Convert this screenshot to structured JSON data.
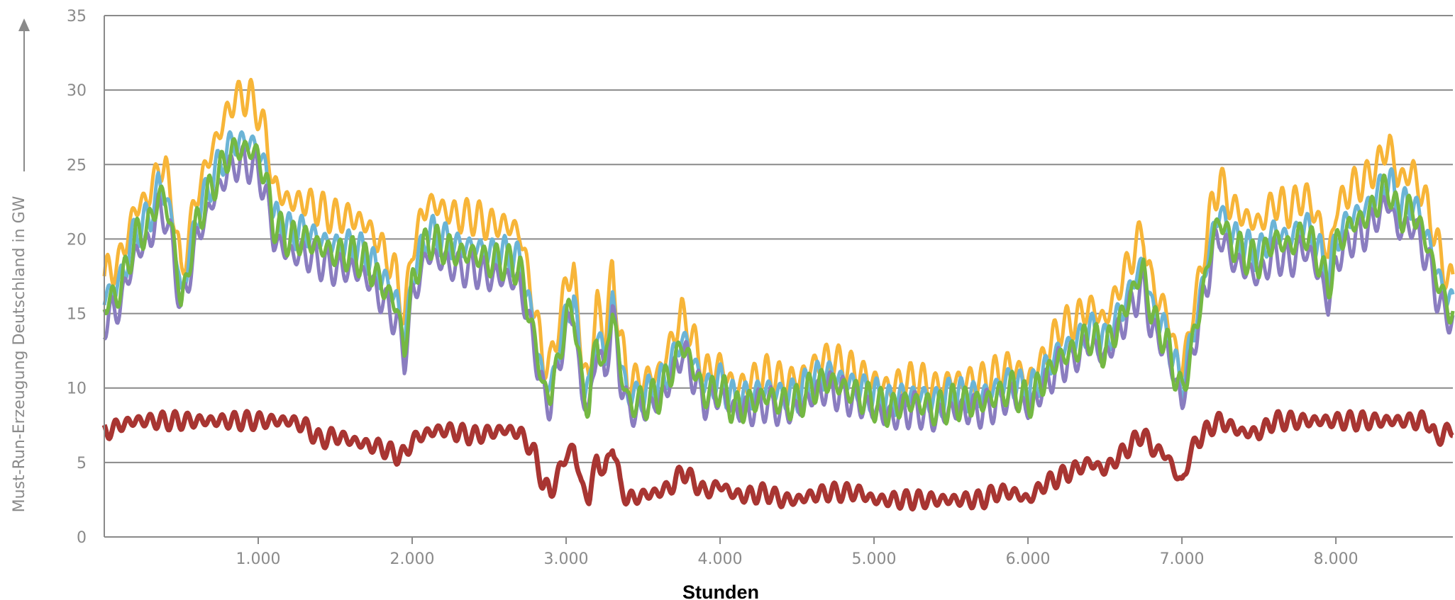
{
  "chart_data": {
    "type": "line",
    "xlabel": "Stunden",
    "ylabel": "Must-Run-Erzeugung Deutschland in GW",
    "xlim": [
      0,
      8760
    ],
    "ylim": [
      0,
      35
    ],
    "grid": true,
    "xticks": [
      {
        "value": 1000,
        "label": "1.000"
      },
      {
        "value": 2000,
        "label": "2.000"
      },
      {
        "value": 3000,
        "label": "3.000"
      },
      {
        "value": 4000,
        "label": "4.000"
      },
      {
        "value": 5000,
        "label": "5.000"
      },
      {
        "value": 6000,
        "label": "6.000"
      },
      {
        "value": 7000,
        "label": "7.000"
      },
      {
        "value": 8000,
        "label": "8.000"
      }
    ],
    "yticks": [
      {
        "value": 0,
        "label": "0"
      },
      {
        "value": 5,
        "label": "5"
      },
      {
        "value": 10,
        "label": "10"
      },
      {
        "value": 15,
        "label": "15"
      },
      {
        "value": 20,
        "label": "20"
      },
      {
        "value": 25,
        "label": "25"
      },
      {
        "value": 30,
        "label": "30"
      },
      {
        "value": 35,
        "label": "35"
      }
    ],
    "x": [
      0,
      100,
      200,
      300,
      350,
      400,
      450,
      500,
      600,
      700,
      800,
      850,
      900,
      950,
      1000,
      1050,
      1100,
      1200,
      1300,
      1400,
      1500,
      1600,
      1700,
      1800,
      1900,
      1950,
      2000,
      2100,
      2200,
      2300,
      2400,
      2500,
      2600,
      2700,
      2800,
      2850,
      2900,
      3000,
      3050,
      3100,
      3150,
      3200,
      3250,
      3300,
      3350,
      3400,
      3500,
      3600,
      3700,
      3750,
      3800,
      3900,
      4000,
      4100,
      4200,
      4300,
      4400,
      4500,
      4600,
      4700,
      4800,
      4900,
      5000,
      5100,
      5200,
      5300,
      5400,
      5500,
      5600,
      5700,
      5800,
      5900,
      6000,
      6100,
      6200,
      6300,
      6400,
      6500,
      6600,
      6700,
      6750,
      6800,
      6900,
      7000,
      7050,
      7100,
      7200,
      7250,
      7300,
      7400,
      7500,
      7600,
      7700,
      7800,
      7900,
      7950,
      8000,
      8100,
      8200,
      8300,
      8350,
      8400,
      8500,
      8600,
      8650,
      8700,
      8760
    ],
    "series": [
      {
        "color": "#f7b538",
        "values": [
          17.5,
          18.5,
          22.0,
          23.0,
          25.0,
          24.5,
          22.0,
          17.5,
          23.0,
          26.0,
          28.5,
          29.5,
          29.5,
          29.5,
          28.5,
          27.0,
          23.5,
          22.5,
          22.5,
          22.0,
          21.5,
          21.5,
          21.0,
          19.5,
          17.5,
          14.5,
          19.5,
          22.5,
          22.0,
          21.5,
          21.5,
          21.0,
          21.0,
          20.5,
          15.0,
          12.0,
          11.5,
          17.0,
          18.0,
          12.0,
          10.5,
          16.0,
          13.0,
          18.0,
          13.5,
          10.5,
          10.5,
          11.0,
          13.5,
          15.0,
          14.0,
          11.0,
          11.5,
          10.0,
          10.5,
          11.0,
          10.5,
          10.5,
          11.5,
          12.0,
          11.5,
          11.0,
          10.5,
          10.0,
          10.5,
          10.5,
          10.0,
          10.5,
          10.5,
          10.5,
          11.0,
          11.5,
          10.5,
          12.0,
          14.0,
          14.5,
          15.5,
          14.5,
          17.0,
          19.5,
          20.5,
          17.0,
          15.0,
          11.0,
          14.0,
          16.5,
          22.5,
          24.0,
          22.5,
          21.5,
          21.0,
          22.5,
          22.0,
          23.0,
          21.0,
          18.5,
          22.0,
          23.5,
          24.0,
          25.5,
          26.5,
          24.0,
          24.5,
          22.0,
          20.0,
          18.0,
          17.0
        ]
      },
      {
        "color": "#6bb4d6",
        "values": [
          16.0,
          17.0,
          20.5,
          21.5,
          23.5,
          23.0,
          20.5,
          16.0,
          21.5,
          24.0,
          26.0,
          26.5,
          26.5,
          26.5,
          26.0,
          24.5,
          21.5,
          20.5,
          20.5,
          20.0,
          19.5,
          19.5,
          19.0,
          17.5,
          16.0,
          13.0,
          17.5,
          20.5,
          20.0,
          19.5,
          19.5,
          19.0,
          19.0,
          18.5,
          13.5,
          10.5,
          10.0,
          15.0,
          16.0,
          10.5,
          9.5,
          14.0,
          11.5,
          16.0,
          12.0,
          9.5,
          9.5,
          10.0,
          12.0,
          13.5,
          12.5,
          10.0,
          10.5,
          9.0,
          9.5,
          10.0,
          9.5,
          9.5,
          10.5,
          11.0,
          10.5,
          10.0,
          9.5,
          9.0,
          9.5,
          9.5,
          9.0,
          9.5,
          9.5,
          9.5,
          10.0,
          10.5,
          9.5,
          11.0,
          12.5,
          13.0,
          14.0,
          13.0,
          15.0,
          17.5,
          18.5,
          15.5,
          13.5,
          10.0,
          12.5,
          15.0,
          20.5,
          22.0,
          20.5,
          19.5,
          19.0,
          20.5,
          20.0,
          21.0,
          19.0,
          17.0,
          20.0,
          21.5,
          22.0,
          23.5,
          24.0,
          22.0,
          22.5,
          20.0,
          18.0,
          16.5,
          15.5
        ]
      },
      {
        "color": "#8a7dc0",
        "values": [
          14.5,
          15.5,
          19.0,
          20.0,
          22.0,
          21.5,
          19.0,
          15.0,
          20.0,
          22.5,
          24.5,
          25.0,
          25.0,
          25.0,
          24.5,
          23.0,
          20.0,
          19.0,
          19.0,
          18.5,
          18.0,
          18.0,
          17.5,
          16.0,
          14.5,
          12.0,
          16.0,
          19.0,
          18.5,
          18.0,
          18.0,
          17.5,
          17.5,
          17.0,
          12.5,
          9.5,
          9.0,
          14.0,
          15.0,
          9.5,
          8.5,
          13.0,
          10.5,
          15.0,
          11.0,
          8.5,
          8.5,
          9.0,
          11.0,
          12.5,
          11.5,
          9.0,
          9.5,
          8.5,
          8.5,
          9.0,
          8.5,
          8.5,
          9.5,
          10.0,
          9.5,
          9.0,
          8.5,
          8.0,
          8.5,
          8.5,
          8.0,
          8.5,
          8.5,
          8.5,
          9.0,
          9.5,
          8.5,
          10.0,
          11.5,
          12.0,
          13.0,
          12.0,
          14.0,
          16.0,
          17.0,
          14.0,
          12.5,
          9.0,
          11.5,
          14.0,
          19.0,
          20.5,
          19.0,
          18.0,
          17.5,
          19.0,
          18.5,
          19.5,
          17.5,
          15.5,
          18.5,
          20.0,
          20.5,
          22.0,
          22.5,
          20.5,
          21.0,
          18.5,
          16.5,
          15.0,
          14.5
        ]
      },
      {
        "color": "#74b843",
        "values": [
          15.5,
          16.5,
          20.0,
          21.0,
          23.0,
          22.5,
          20.0,
          15.5,
          21.0,
          23.5,
          25.5,
          26.0,
          26.0,
          26.0,
          25.5,
          24.0,
          21.0,
          20.0,
          20.0,
          19.5,
          19.0,
          19.0,
          18.5,
          17.0,
          15.5,
          12.5,
          17.0,
          20.0,
          19.5,
          19.0,
          19.0,
          18.5,
          18.5,
          18.0,
          13.0,
          10.0,
          9.5,
          14.5,
          15.5,
          10.0,
          9.0,
          13.5,
          11.0,
          15.5,
          11.5,
          9.0,
          9.0,
          9.5,
          11.5,
          13.0,
          12.0,
          9.5,
          10.0,
          8.5,
          9.0,
          9.5,
          9.0,
          9.0,
          10.0,
          10.5,
          10.0,
          9.5,
          9.0,
          8.5,
          9.0,
          9.0,
          8.5,
          9.0,
          9.0,
          9.0,
          9.5,
          10.0,
          9.0,
          10.5,
          12.0,
          12.5,
          13.5,
          12.5,
          14.5,
          17.0,
          18.0,
          15.0,
          13.0,
          9.5,
          12.0,
          14.5,
          20.0,
          21.5,
          20.0,
          19.0,
          18.5,
          20.0,
          19.5,
          20.5,
          18.5,
          16.5,
          19.5,
          21.0,
          21.5,
          23.0,
          23.5,
          21.5,
          22.0,
          19.5,
          17.5,
          16.0,
          15.0
        ]
      },
      {
        "color": "#a83532",
        "values": [
          7.0,
          7.5,
          7.8,
          7.8,
          7.8,
          7.8,
          7.8,
          7.8,
          7.8,
          7.8,
          7.8,
          7.8,
          7.8,
          7.8,
          7.8,
          7.8,
          7.8,
          7.8,
          7.5,
          6.5,
          6.8,
          6.5,
          6.2,
          6.0,
          5.5,
          5.5,
          6.5,
          7.0,
          7.2,
          7.0,
          6.8,
          7.0,
          7.2,
          7.0,
          5.5,
          3.5,
          3.0,
          5.5,
          6.0,
          3.5,
          2.5,
          5.5,
          4.0,
          6.5,
          3.5,
          2.5,
          2.8,
          3.0,
          3.5,
          4.5,
          4.0,
          3.0,
          3.5,
          2.8,
          2.8,
          3.0,
          2.5,
          2.5,
          2.8,
          3.0,
          3.0,
          3.0,
          2.5,
          2.5,
          2.5,
          2.5,
          2.5,
          2.5,
          2.5,
          2.5,
          3.0,
          3.0,
          2.5,
          3.5,
          4.0,
          4.5,
          5.0,
          4.5,
          5.5,
          6.5,
          7.0,
          6.0,
          5.5,
          3.5,
          5.5,
          6.5,
          7.5,
          7.8,
          7.5,
          7.0,
          7.0,
          7.8,
          7.8,
          7.8,
          7.8,
          7.8,
          7.8,
          7.8,
          7.8,
          7.8,
          7.8,
          7.8,
          7.8,
          7.8,
          6.5,
          7.0,
          7.2
        ]
      }
    ]
  }
}
